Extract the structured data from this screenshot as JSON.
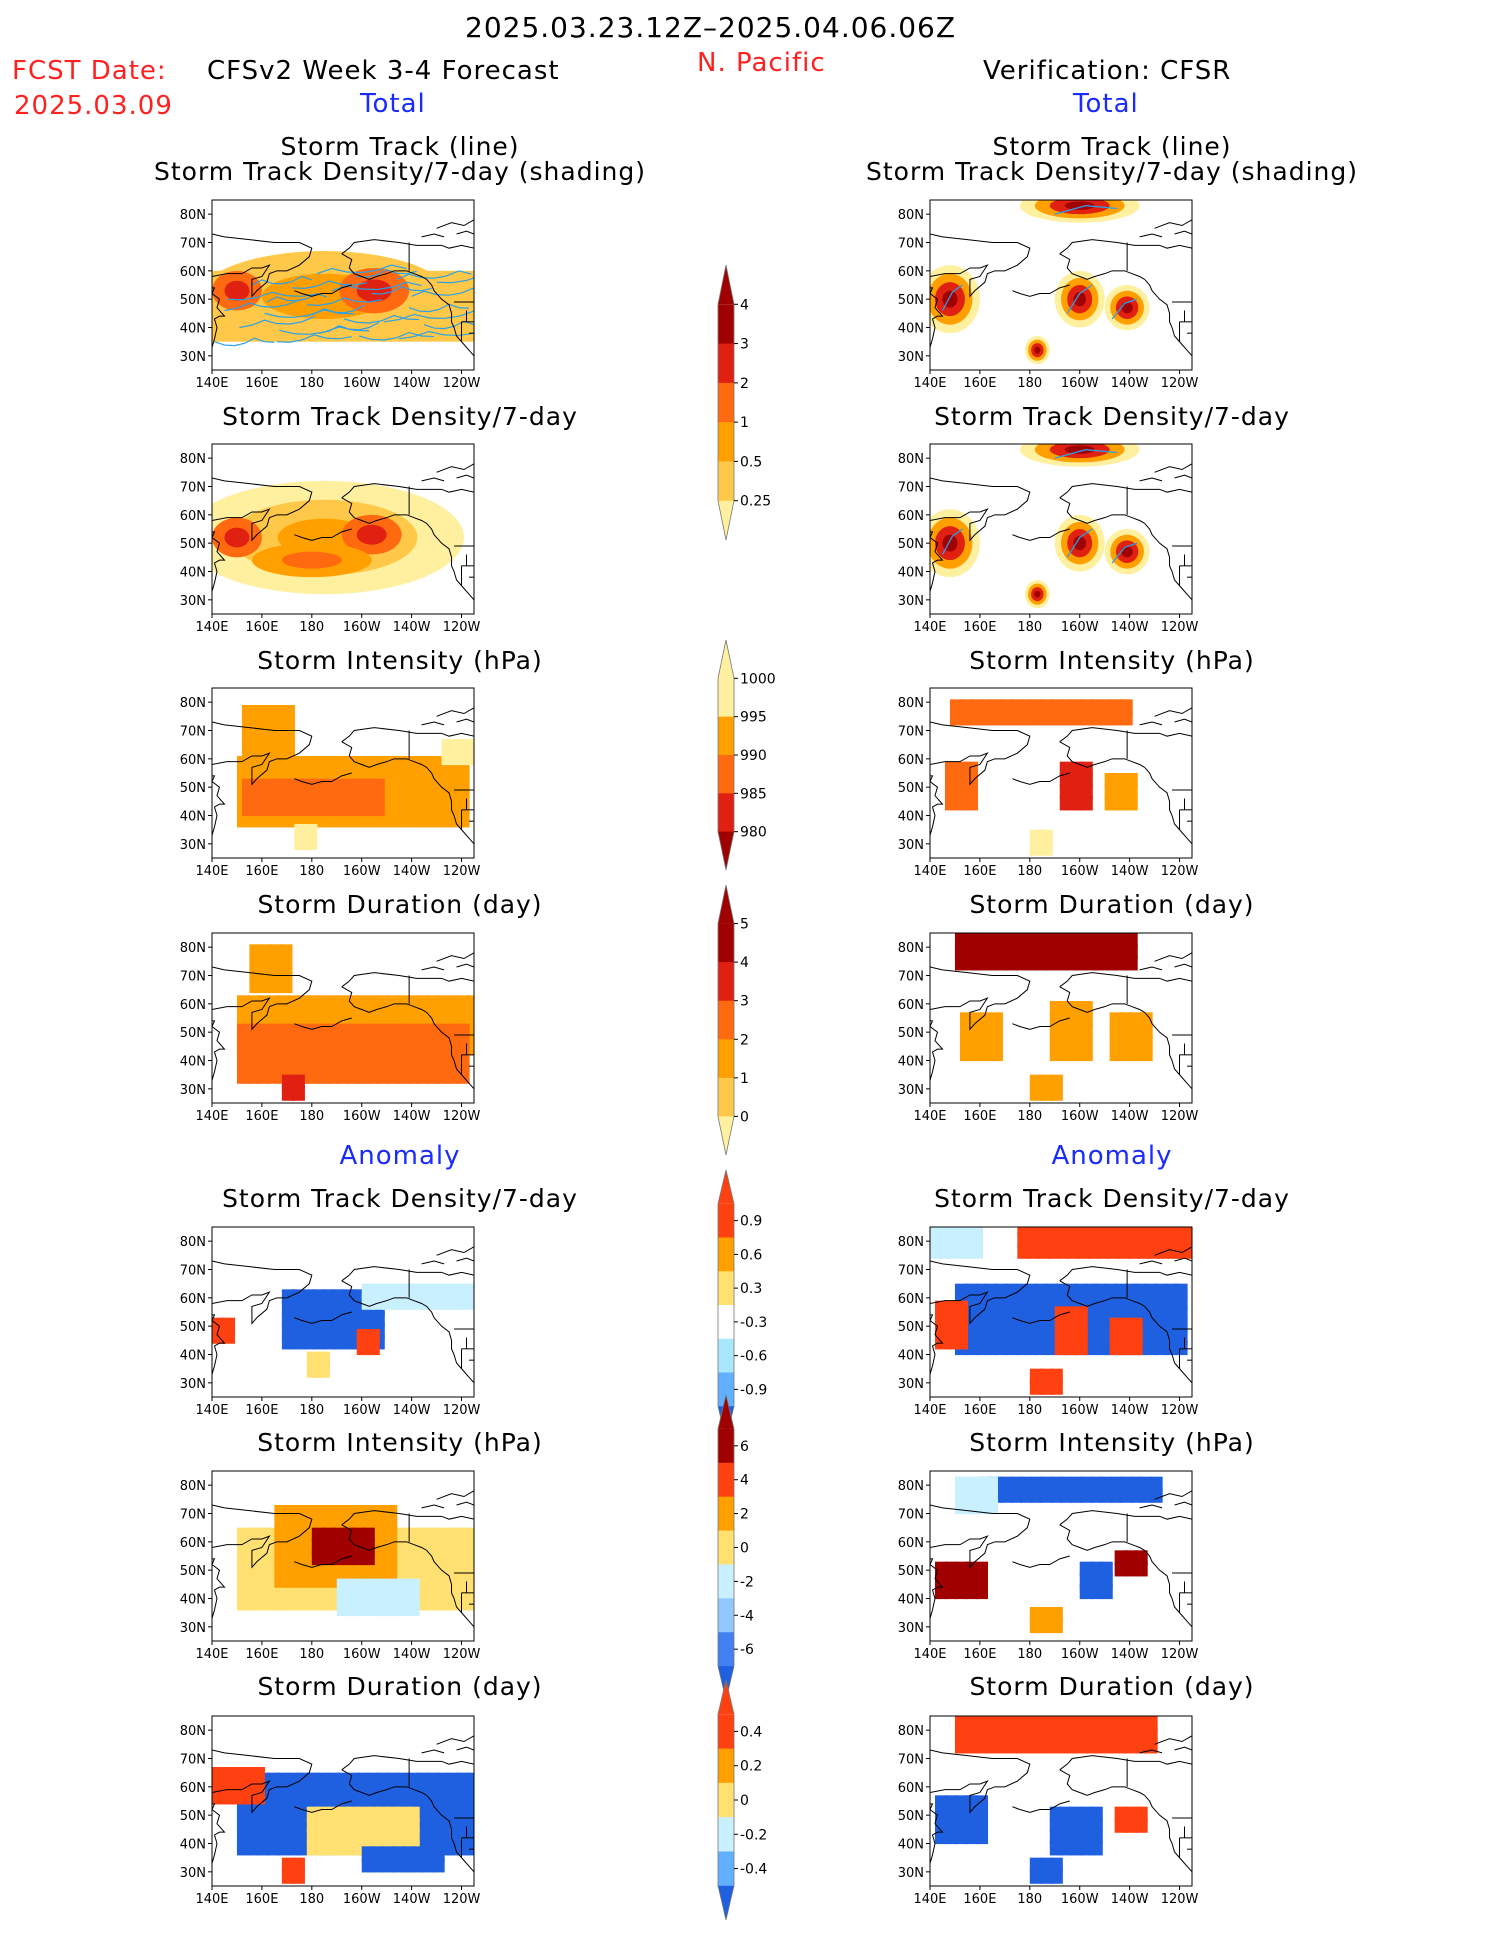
{
  "header": {
    "date_range": "2025.03.23.12Z–2025.04.06.06Z",
    "region": "N. Pacific",
    "fcst_label": "FCST Date:",
    "fcst_date": "2025.03.09",
    "model_title": "CFSv2 Week 3-4 Forecast",
    "verification_title": "Verification: CFSR",
    "left_total": "Total",
    "right_total": "Total",
    "left_anomaly": "Anomaly",
    "right_anomaly": "Anomaly"
  },
  "panel_titles": {
    "track_line": "Storm Track (line)",
    "track_shading": "Storm Track Density/7-day (shading)",
    "density": "Storm Track Density/7-day",
    "intensity": "Storm Intensity (hPa)",
    "duration": "Storm Duration (day)"
  },
  "axes": {
    "x_ticks": [
      "140E",
      "160E",
      "180",
      "160W",
      "140W",
      "120W"
    ],
    "y_ticks": [
      "80N",
      "70N",
      "60N",
      "50N",
      "40N",
      "30N"
    ]
  },
  "colorbars": {
    "density_total": {
      "labels": [
        "4",
        "3",
        "2",
        "1",
        "0.5",
        "0.25"
      ],
      "colors": [
        "#a00000",
        "#e02010",
        "#ff6a10",
        "#ffa000",
        "#ffc848",
        "#fff0a0"
      ]
    },
    "intensity_total": {
      "labels": [
        "1000",
        "995",
        "990",
        "985",
        "980"
      ],
      "colors": [
        "#fff0a0",
        "#ffa000",
        "#ff6a10",
        "#e02010",
        "#a00000"
      ]
    },
    "duration_total": {
      "labels": [
        "5",
        "4",
        "3",
        "2",
        "1",
        "0"
      ],
      "colors": [
        "#a00000",
        "#e02010",
        "#ff6a10",
        "#ffa000",
        "#ffc848",
        "#fff0a0"
      ]
    },
    "density_anom": {
      "labels": [
        "0.9",
        "0.6",
        "0.3",
        "-0.3",
        "-0.6",
        "-0.9"
      ],
      "colors": [
        "#ff4010",
        "#ffa000",
        "#ffe070",
        "#ffffff",
        "#a8e8ff",
        "#60b0ff",
        "#1e60e0"
      ]
    },
    "intensity_anom": {
      "labels": [
        "6",
        "4",
        "2",
        "0",
        "-2",
        "-4",
        "-6"
      ],
      "colors": [
        "#a00000",
        "#ff4010",
        "#ffa000",
        "#ffe070",
        "#c8f0ff",
        "#90c8ff",
        "#4080f0",
        "#1e60e0"
      ]
    },
    "duration_anom": {
      "labels": [
        "0.4",
        "0.2",
        "0",
        "-0.2",
        "-0.4"
      ],
      "colors": [
        "#ff4010",
        "#ffa000",
        "#ffe070",
        "#c8f0ff",
        "#60b0ff",
        "#1e60e0"
      ]
    }
  }
}
